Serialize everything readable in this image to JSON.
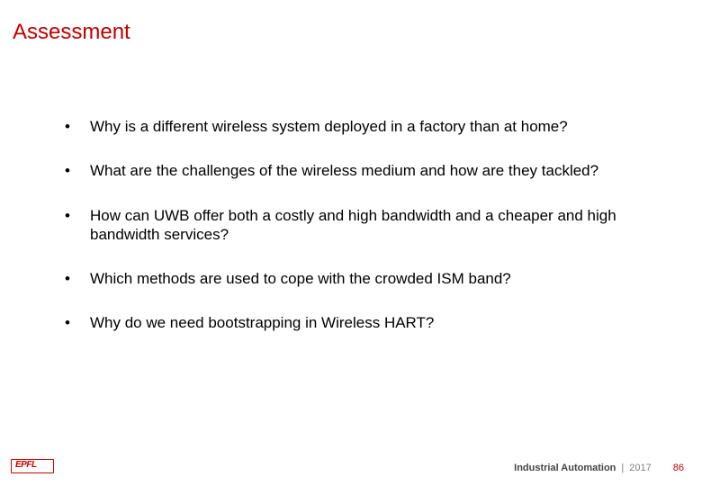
{
  "title": {
    "text": "Assessment",
    "color": "#c00000",
    "fontsize": 24
  },
  "bullets": {
    "marker": "•",
    "fontsize": 17,
    "color": "#000000",
    "items": [
      "Why is a different wireless system deployed in a factory than at home?",
      "What are the challenges of the wireless medium and how are they tackled?",
      "How can UWB offer both a costly and high bandwidth and a cheaper and high bandwidth services?",
      "Which methods are used to cope with the crowded ISM band?",
      "Why do we need bootstrapping in Wireless HART?"
    ]
  },
  "footer": {
    "title": "Industrial Automation",
    "separator": "|",
    "year": "2017",
    "page": "86",
    "page_color": "#c00000"
  },
  "logo": {
    "text": "EPFL",
    "color": "#cc0000"
  },
  "background_color": "#ffffff"
}
